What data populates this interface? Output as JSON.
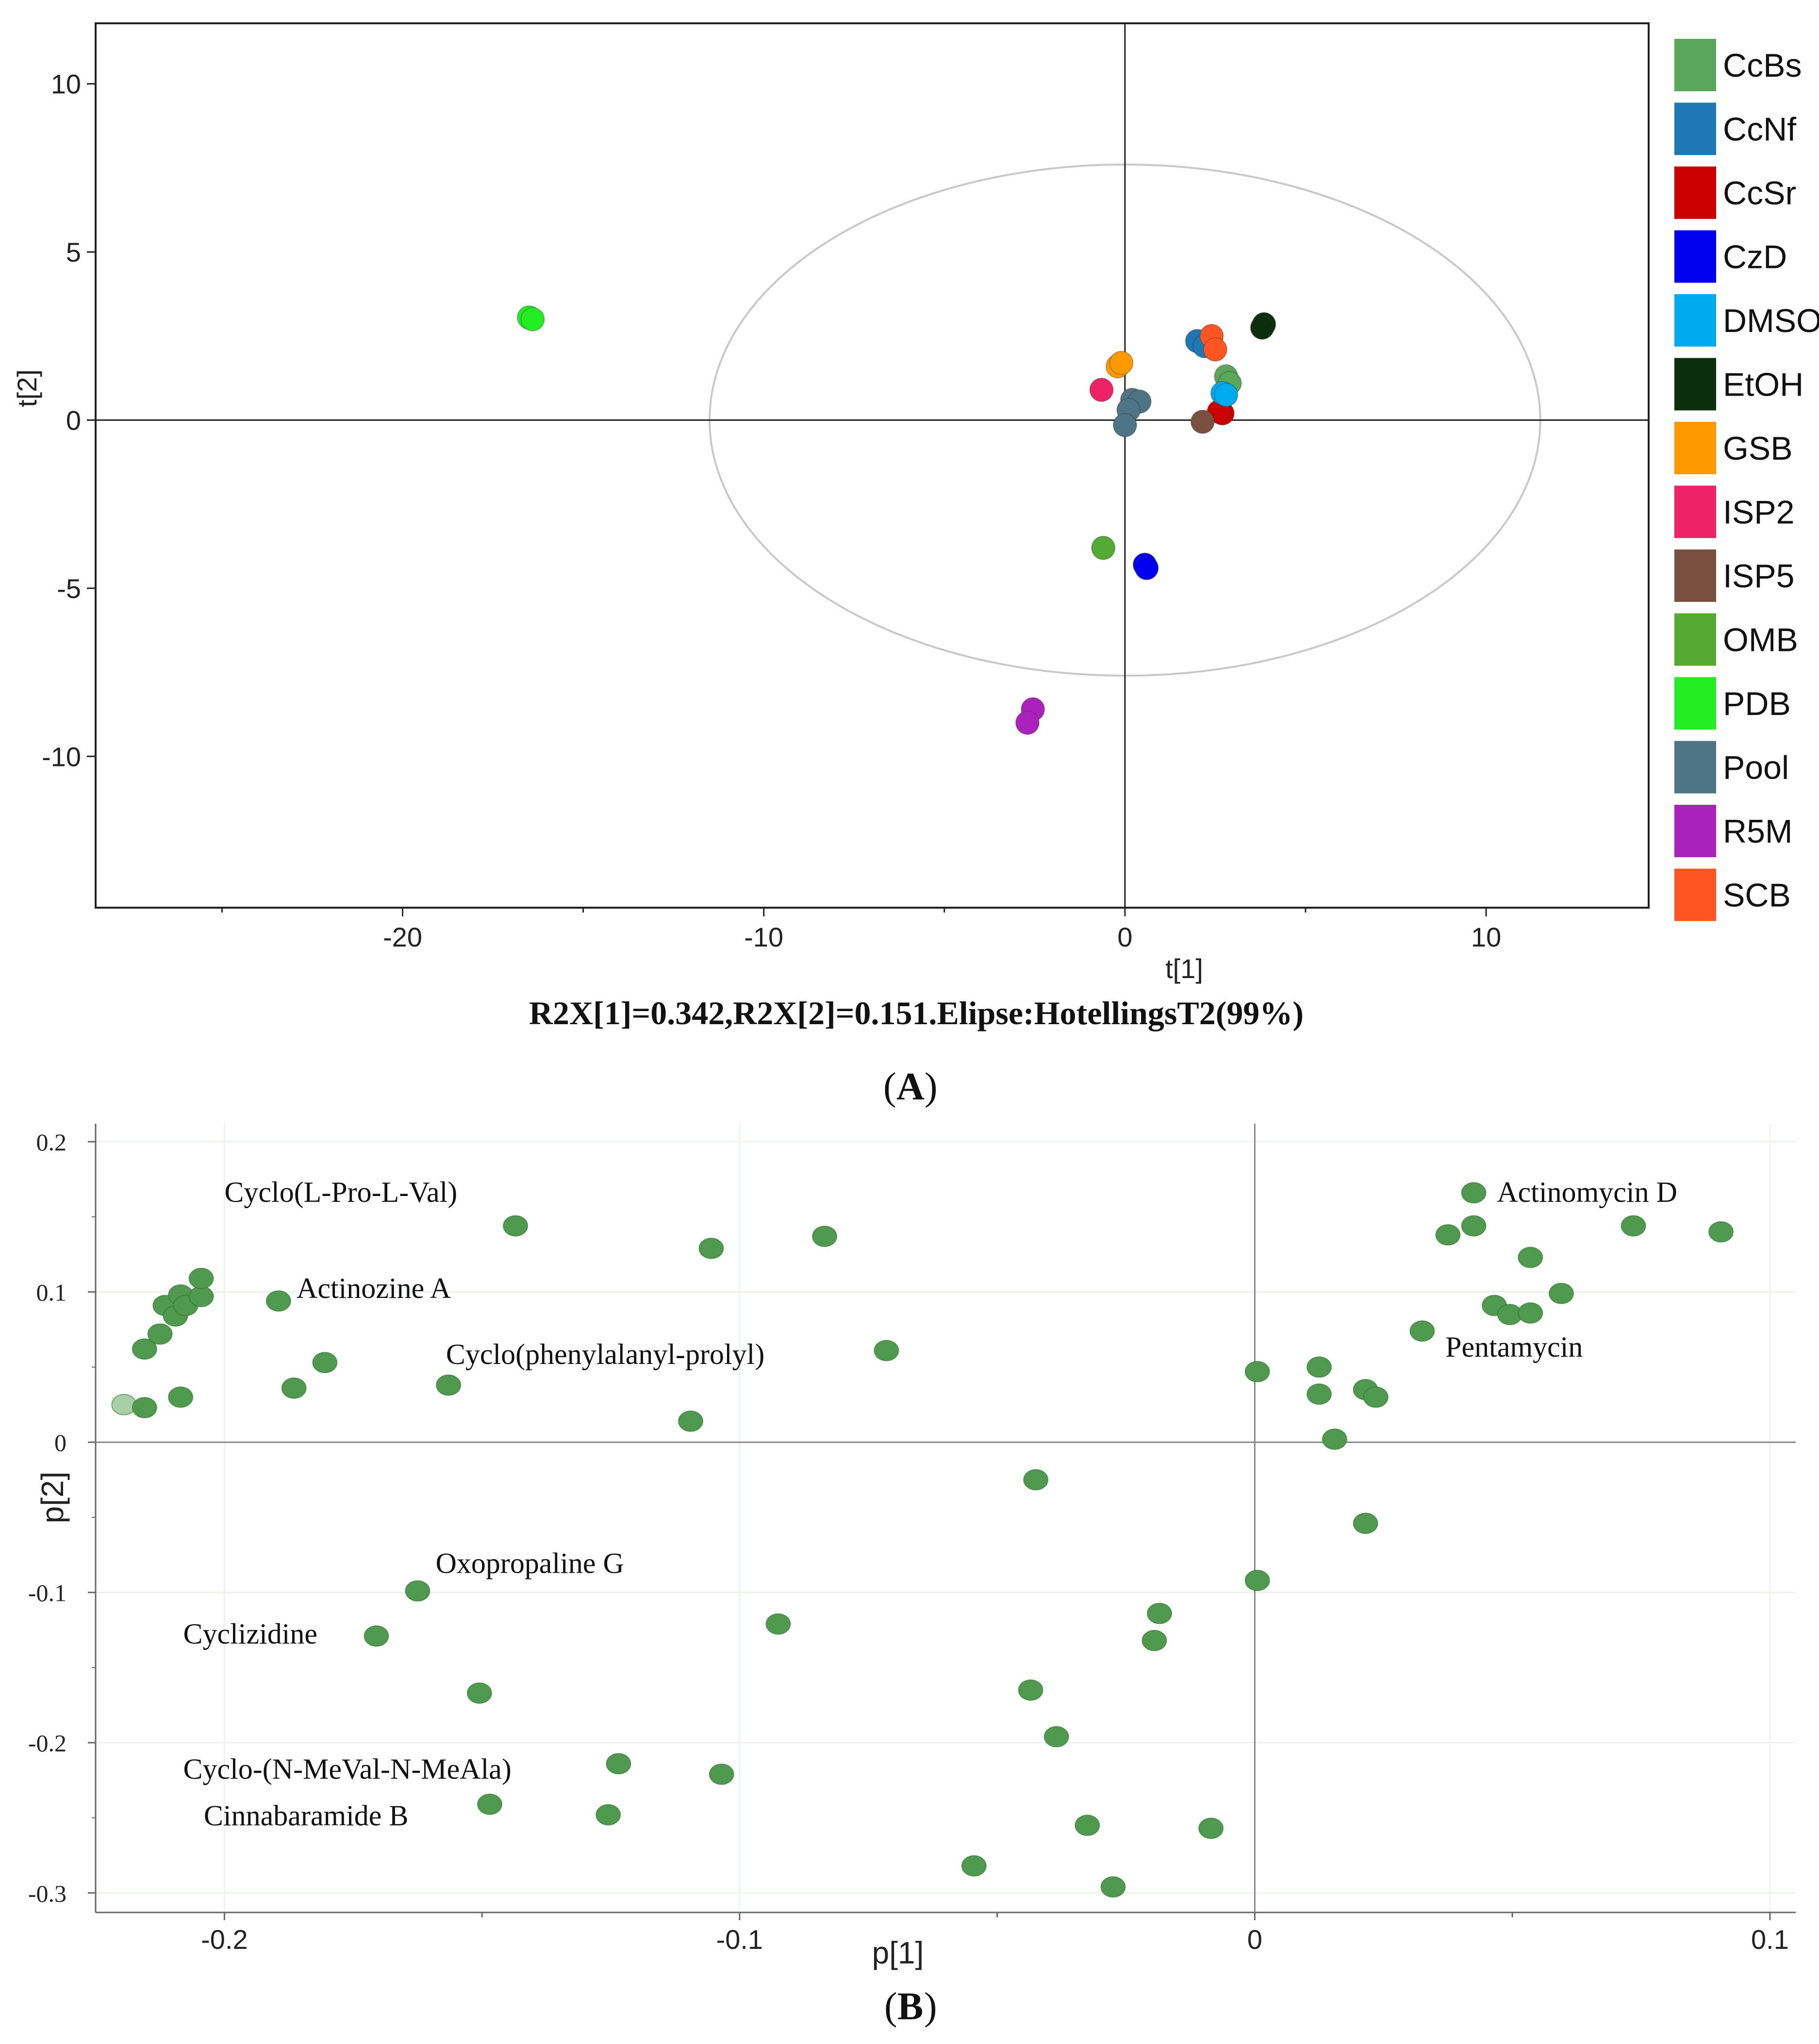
{
  "colors": {
    "axis": "#222222",
    "ellipse": "#c8c8c8",
    "grid": "#eef2ee",
    "loading_point": "#4f9a4f",
    "loading_point_faded": "#a8cfa8"
  },
  "chart_data": [
    {
      "type": "scatter",
      "title": "",
      "xlabel": "t[1]",
      "ylabel": "t[2]",
      "xlim": [
        -28.5,
        14.5
      ],
      "ylim": [
        -14.5,
        11.8
      ],
      "xticks": [
        -20,
        -10,
        0,
        10
      ],
      "yticks": [
        10,
        5,
        0,
        -5,
        -10
      ],
      "xtick_labels": [
        "-20",
        "-10",
        "0",
        "10"
      ],
      "ytick_labels": [
        "10",
        "5",
        "0",
        "-5",
        "-10"
      ],
      "caption": "R2X[1]=0.342,R2X[2]=0.151.Elipse:HotellingsT2(99%)",
      "panel_label": "A",
      "ellipse": {
        "cx": 0,
        "cy": 0,
        "rx": 11.5,
        "ry": 7.6,
        "label": "HotellingsT2(99%)"
      },
      "legend_position": "right",
      "series": [
        {
          "name": "CcBs",
          "color": "#5aa65a",
          "points": [
            [
              2.8,
              1.3
            ],
            [
              2.9,
              1.1
            ]
          ]
        },
        {
          "name": "CcNf",
          "color": "#1f77b4",
          "points": [
            [
              2.0,
              2.35
            ],
            [
              2.2,
              2.2
            ]
          ]
        },
        {
          "name": "CcSr",
          "color": "#cc0000",
          "points": [
            [
              2.7,
              0.2
            ],
            [
              2.6,
              0.25
            ]
          ]
        },
        {
          "name": "CzD",
          "color": "#0000ee",
          "points": [
            [
              0.55,
              -4.3
            ],
            [
              0.6,
              -4.4
            ]
          ]
        },
        {
          "name": "DMSO",
          "color": "#00aaee",
          "points": [
            [
              2.7,
              0.8
            ],
            [
              2.8,
              0.75
            ]
          ]
        },
        {
          "name": "EtOH",
          "color": "#0d2e0d",
          "points": [
            [
              3.85,
              2.85
            ],
            [
              3.8,
              2.75
            ]
          ]
        },
        {
          "name": "GSB",
          "color": "#ff9900",
          "points": [
            [
              -0.2,
              1.6
            ],
            [
              -0.1,
              1.7
            ]
          ]
        },
        {
          "name": "ISP2",
          "color": "#ee2266",
          "points": [
            [
              -0.65,
              0.9
            ]
          ]
        },
        {
          "name": "ISP5",
          "color": "#7a5040",
          "points": [
            [
              2.15,
              -0.05
            ]
          ]
        },
        {
          "name": "OMB",
          "color": "#55aa33",
          "points": [
            [
              -0.6,
              -3.8
            ]
          ]
        },
        {
          "name": "PDB",
          "color": "#22ee22",
          "points": [
            [
              -16.5,
              3.05
            ],
            [
              -16.4,
              3.0
            ]
          ]
        },
        {
          "name": "Pool",
          "color": "#4d7585",
          "points": [
            [
              0.2,
              0.6
            ],
            [
              0.4,
              0.55
            ],
            [
              0.1,
              0.3
            ],
            [
              0.0,
              -0.15
            ]
          ]
        },
        {
          "name": "R5M",
          "color": "#aa22bb",
          "points": [
            [
              -2.55,
              -8.6
            ],
            [
              -2.7,
              -9.0
            ]
          ]
        },
        {
          "name": "SCB",
          "color": "#ff5522",
          "points": [
            [
              2.4,
              2.5
            ],
            [
              2.5,
              2.1
            ]
          ]
        }
      ]
    },
    {
      "type": "scatter",
      "title": "",
      "xlabel": "p[1]",
      "ylabel": "p[2]",
      "xlim": [
        -0.225,
        0.105
      ],
      "ylim": [
        -0.313,
        0.212
      ],
      "xticks": [
        -0.2,
        -0.1,
        0,
        0.1
      ],
      "yticks": [
        0.2,
        0.1,
        0,
        -0.1,
        -0.2,
        -0.3
      ],
      "xtick_labels": [
        "-0.2",
        "-0.1",
        "0",
        "0.1"
      ],
      "ytick_labels": [
        "0.2",
        "0.1",
        "0",
        "-0.1",
        "-0.2",
        "-0.3"
      ],
      "panel_label": "B",
      "points": [
        [
          -0.2195,
          0.025
        ],
        [
          -0.2155,
          0.023
        ],
        [
          -0.2155,
          0.062
        ],
        [
          -0.2125,
          0.072
        ],
        [
          -0.2115,
          0.091
        ],
        [
          -0.2095,
          0.084
        ],
        [
          -0.2085,
          0.098
        ],
        [
          -0.2075,
          0.091
        ],
        [
          -0.2045,
          0.097
        ],
        [
          -0.2045,
          0.109
        ],
        [
          -0.2085,
          0.03
        ],
        [
          -0.1895,
          0.094
        ],
        [
          -0.1865,
          0.036
        ],
        [
          -0.1805,
          0.053
        ],
        [
          -0.1565,
          0.038
        ],
        [
          -0.1435,
          0.144
        ],
        [
          -0.1095,
          0.014
        ],
        [
          -0.1055,
          0.129
        ],
        [
          -0.0835,
          0.137
        ],
        [
          -0.0715,
          0.061
        ],
        [
          -0.0425,
          -0.025
        ],
        [
          -0.1625,
          -0.099
        ],
        [
          -0.1705,
          -0.129
        ],
        [
          -0.1505,
          -0.167
        ],
        [
          -0.1485,
          -0.241
        ],
        [
          -0.1235,
          -0.214
        ],
        [
          -0.1255,
          -0.248
        ],
        [
          -0.1035,
          -0.221
        ],
        [
          -0.0925,
          -0.121
        ],
        [
          -0.0545,
          -0.282
        ],
        [
          -0.0435,
          -0.165
        ],
        [
          -0.0385,
          -0.196
        ],
        [
          -0.0325,
          -0.255
        ],
        [
          -0.0275,
          -0.296
        ],
        [
          -0.0185,
          -0.114
        ],
        [
          -0.0195,
          -0.132
        ],
        [
          -0.0085,
          -0.257
        ],
        [
          0.0005,
          -0.092
        ],
        [
          0.0005,
          0.047
        ],
        [
          0.0125,
          0.05
        ],
        [
          0.0125,
          0.032
        ],
        [
          0.0155,
          0.002
        ],
        [
          0.0215,
          0.035
        ],
        [
          0.0235,
          0.03
        ],
        [
          0.0215,
          -0.054
        ],
        [
          0.0325,
          0.074
        ],
        [
          0.0375,
          0.138
        ],
        [
          0.0425,
          0.166
        ],
        [
          0.0425,
          0.144
        ],
        [
          0.0465,
          0.091
        ],
        [
          0.0495,
          0.085
        ],
        [
          0.0535,
          0.086
        ],
        [
          0.0535,
          0.123
        ],
        [
          0.0595,
          0.099
        ],
        [
          0.0735,
          0.144
        ],
        [
          0.0905,
          0.14
        ]
      ],
      "annotations": [
        {
          "text": "Cyclo(L-Pro-L-Val)",
          "x": -0.2,
          "y": 0.16
        },
        {
          "text": "Actinozine A",
          "x": -0.186,
          "y": 0.096
        },
        {
          "text": "Cyclo(phenylalanyl-prolyl)",
          "x": -0.157,
          "y": 0.052
        },
        {
          "text": "Oxopropaline G",
          "x": -0.159,
          "y": -0.087
        },
        {
          "text": "Cyclizidine",
          "x": -0.208,
          "y": -0.134
        },
        {
          "text": "Cyclo-(N-MeVal-N-MeAla)",
          "x": -0.208,
          "y": -0.224
        },
        {
          "text": "Cinnabaramide B",
          "x": -0.204,
          "y": -0.255
        },
        {
          "text": "Actinomycin D",
          "x": 0.047,
          "y": 0.16
        },
        {
          "text": "Pentamycin",
          "x": 0.037,
          "y": 0.057
        }
      ]
    }
  ]
}
